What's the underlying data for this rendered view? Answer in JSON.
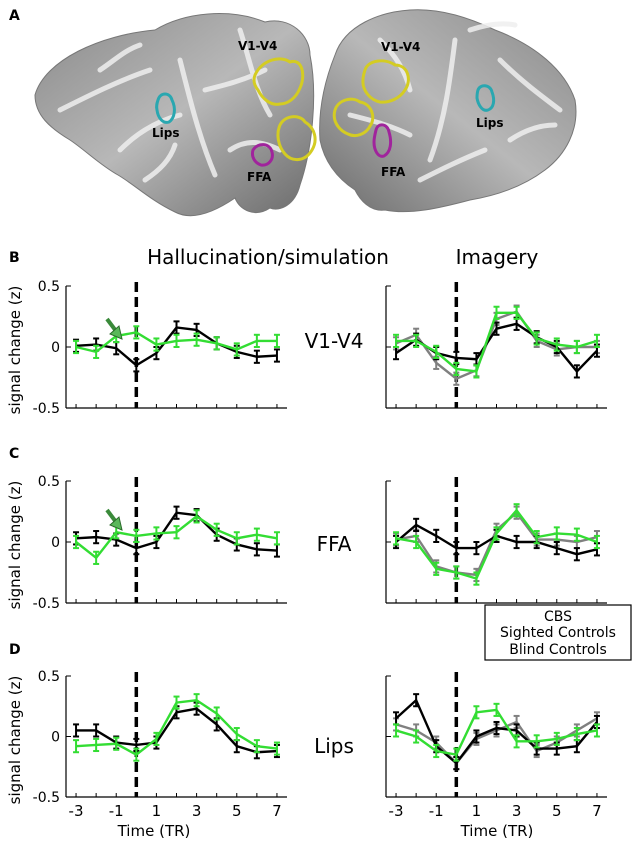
{
  "panel_letters": [
    "A",
    "B",
    "C",
    "D"
  ],
  "column_titles": {
    "left": "Hallucination/simulation",
    "right": "Imagery"
  },
  "brain_labels": {
    "left": {
      "v1v4": "V1-V4",
      "lips": "Lips",
      "ffa": "FFA"
    },
    "right": {
      "v1v4": "V1-V4",
      "lips": "Lips",
      "ffa": "FFA"
    }
  },
  "y_axis_label": "signal change (z)",
  "x_axis_label": "Time (TR)",
  "x_ticks": [
    "-3",
    "-1",
    "1",
    "3",
    "5",
    "7"
  ],
  "y_ticks": [
    "0.5",
    "0",
    "-0.5"
  ],
  "legend": {
    "items": [
      "CBS",
      "Sighted Controls",
      "Blind Controls"
    ]
  },
  "colors": {
    "CBS": "#33dd33",
    "Sighted Controls": "#000000",
    "Blind Controls": "#808080",
    "arrow": "#3a8a3a",
    "roi_v1v4": "#d4cc22",
    "roi_ffa": "#a0249c",
    "roi_lips": "#2aa7b0"
  },
  "chart_data": [
    {
      "type": "line",
      "title": "Hallucination/simulation",
      "region": "V1-V4",
      "xlabel": "",
      "ylabel": "signal change (z)",
      "ylim": [
        -0.5,
        0.5
      ],
      "xlim": [
        -3.5,
        7.5
      ],
      "onset_x": 0,
      "x": [
        -3,
        -2,
        -1,
        0,
        1,
        2,
        3,
        4,
        5,
        6,
        7
      ],
      "series": [
        {
          "name": "CBS",
          "values": [
            0.0,
            -0.04,
            0.09,
            0.12,
            0.02,
            0.05,
            0.06,
            0.03,
            -0.02,
            0.05,
            0.05
          ]
        },
        {
          "name": "Sighted Controls",
          "values": [
            0.01,
            0.02,
            -0.01,
            -0.15,
            -0.05,
            0.16,
            0.14,
            0.03,
            -0.04,
            -0.08,
            -0.07
          ]
        }
      ]
    },
    {
      "type": "line",
      "title": "Imagery",
      "region": "V1-V4",
      "ylim": [
        -0.5,
        0.5
      ],
      "xlim": [
        -3.5,
        7.5
      ],
      "onset_x": 0,
      "x": [
        -3,
        -2,
        -1,
        0,
        1,
        2,
        3,
        4,
        5,
        6,
        7
      ],
      "series": [
        {
          "name": "CBS",
          "values": [
            0.05,
            0.05,
            -0.04,
            -0.18,
            -0.2,
            0.28,
            0.28,
            0.07,
            0.02,
            0.0,
            0.05
          ]
        },
        {
          "name": "Sighted Controls",
          "values": [
            -0.05,
            0.06,
            -0.05,
            -0.09,
            -0.1,
            0.15,
            0.19,
            0.08,
            0.0,
            -0.2,
            -0.03
          ]
        },
        {
          "name": "Blind Controls",
          "values": [
            0.03,
            0.1,
            -0.13,
            -0.26,
            -0.19,
            0.23,
            0.29,
            0.05,
            -0.02,
            0.0,
            0.0
          ]
        }
      ]
    },
    {
      "type": "line",
      "title": "Hallucination/simulation",
      "region": "FFA",
      "ylabel": "signal change (z)",
      "ylim": [
        -0.5,
        0.5
      ],
      "xlim": [
        -3.5,
        7.5
      ],
      "onset_x": 0,
      "x": [
        -3,
        -2,
        -1,
        0,
        1,
        2,
        3,
        4,
        5,
        6,
        7
      ],
      "series": [
        {
          "name": "CBS",
          "values": [
            0.0,
            -0.13,
            0.08,
            0.05,
            0.07,
            0.08,
            0.21,
            0.1,
            0.03,
            0.06,
            0.03
          ]
        },
        {
          "name": "Sighted Controls",
          "values": [
            0.03,
            0.04,
            0.02,
            -0.05,
            0.0,
            0.24,
            0.22,
            0.06,
            -0.02,
            -0.06,
            -0.07
          ]
        }
      ]
    },
    {
      "type": "line",
      "title": "Imagery",
      "region": "FFA",
      "ylim": [
        -0.5,
        0.5
      ],
      "xlim": [
        -3.5,
        7.5
      ],
      "onset_x": 0,
      "x": [
        -3,
        -2,
        -1,
        0,
        1,
        2,
        3,
        4,
        5,
        6,
        7
      ],
      "series": [
        {
          "name": "CBS",
          "values": [
            0.03,
            0.0,
            -0.22,
            -0.25,
            -0.3,
            0.07,
            0.26,
            0.04,
            0.07,
            0.06,
            0.0
          ]
        },
        {
          "name": "Sighted Controls",
          "values": [
            0.0,
            0.14,
            0.05,
            -0.05,
            -0.05,
            0.05,
            0.0,
            0.0,
            -0.05,
            -0.1,
            -0.06
          ]
        },
        {
          "name": "Blind Controls",
          "values": [
            0.02,
            0.05,
            -0.2,
            -0.25,
            -0.27,
            0.1,
            0.24,
            0.02,
            0.02,
            0.0,
            0.04
          ]
        }
      ]
    },
    {
      "type": "line",
      "title": "Hallucination/simulation",
      "region": "Lips",
      "xlabel": "Time (TR)",
      "ylabel": "signal change (z)",
      "ylim": [
        -0.5,
        0.5
      ],
      "xlim": [
        -3.5,
        7.5
      ],
      "onset_x": 0,
      "x": [
        -3,
        -2,
        -1,
        0,
        1,
        2,
        3,
        4,
        5,
        6,
        7
      ],
      "series": [
        {
          "name": "CBS",
          "values": [
            -0.08,
            -0.07,
            -0.06,
            -0.15,
            -0.02,
            0.28,
            0.3,
            0.19,
            0.02,
            -0.08,
            -0.1
          ]
        },
        {
          "name": "Sighted Controls",
          "values": [
            0.05,
            0.05,
            -0.05,
            -0.07,
            -0.05,
            0.2,
            0.23,
            0.1,
            -0.08,
            -0.13,
            -0.12
          ]
        }
      ]
    },
    {
      "type": "line",
      "title": "Imagery",
      "region": "Lips",
      "xlabel": "Time (TR)",
      "ylim": [
        -0.5,
        0.5
      ],
      "xlim": [
        -3.5,
        7.5
      ],
      "onset_x": 0,
      "x": [
        -3,
        -2,
        -1,
        0,
        1,
        2,
        3,
        4,
        5,
        6,
        7
      ],
      "series": [
        {
          "name": "CBS",
          "values": [
            0.05,
            0.0,
            -0.12,
            -0.15,
            0.2,
            0.22,
            -0.04,
            -0.04,
            -0.02,
            0.02,
            0.05
          ]
        },
        {
          "name": "Sighted Controls",
          "values": [
            0.15,
            0.3,
            -0.08,
            -0.22,
            0.0,
            0.07,
            0.05,
            -0.1,
            -0.1,
            -0.08,
            0.12
          ]
        },
        {
          "name": "Blind Controls",
          "values": [
            0.1,
            0.05,
            -0.05,
            -0.22,
            -0.02,
            0.05,
            0.12,
            -0.12,
            -0.05,
            0.05,
            0.15
          ]
        }
      ]
    }
  ]
}
